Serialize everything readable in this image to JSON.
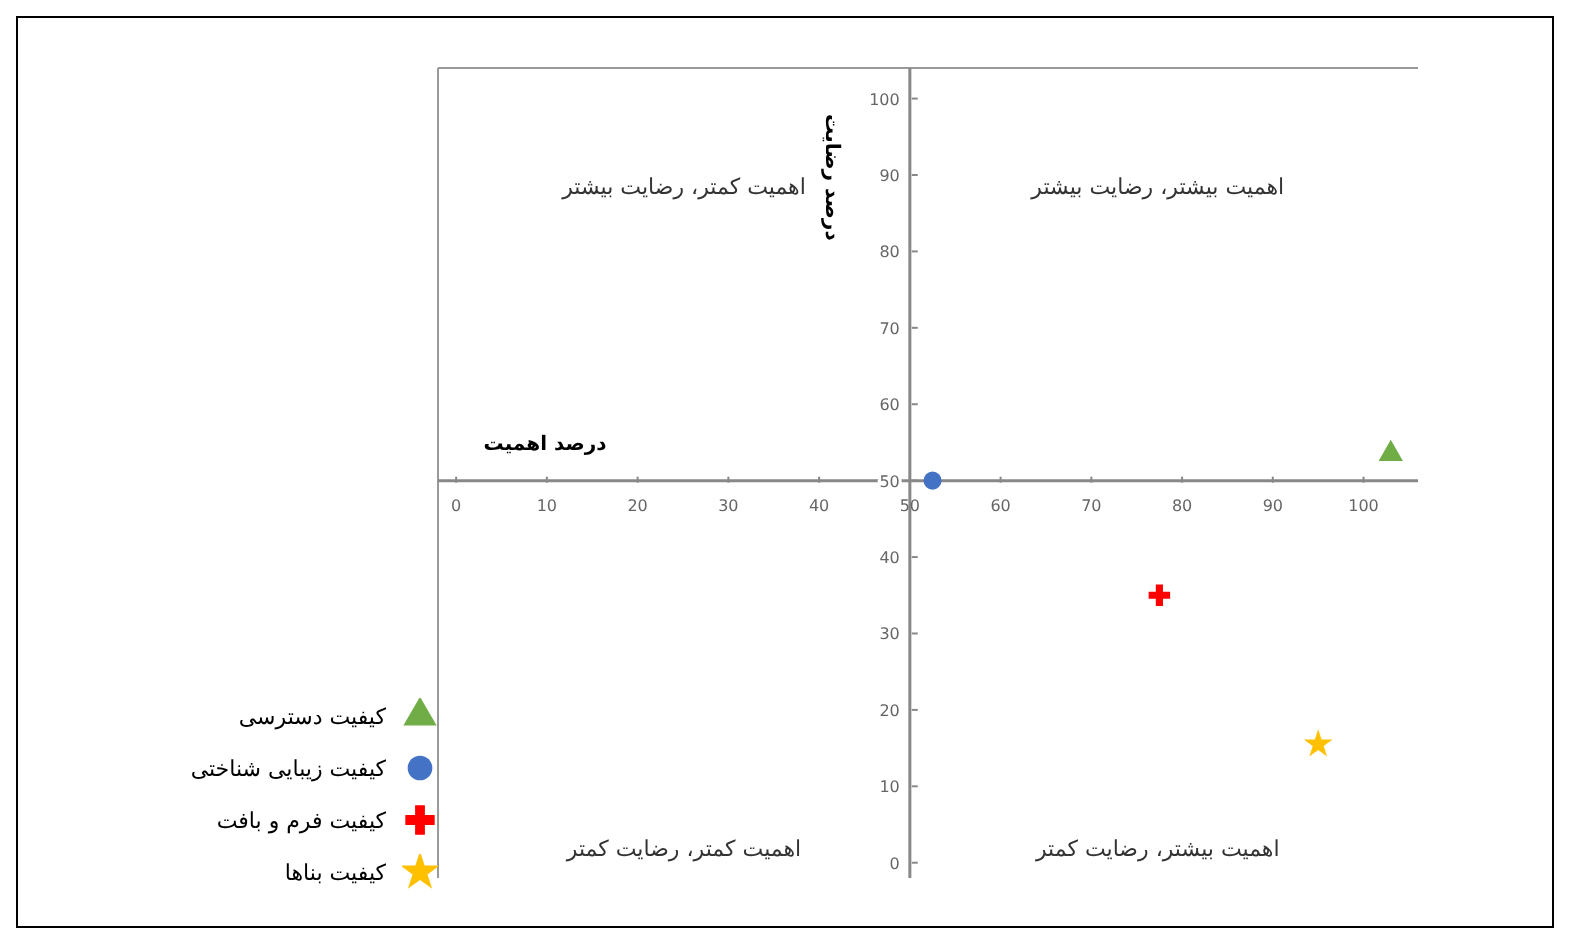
{
  "chart_data": {
    "type": "scatter",
    "xlabel": "درصد اهمیت",
    "ylabel": "درصد رضایت",
    "annotations": [
      "اهمیت کمتر، رضایت بیشتر",
      "اهمیت بیشتر، رضایت بیشتر",
      "اهمیت کمتر، رضایت کمتر",
      "اهمیت بیشتر، رضایت کمتر"
    ],
    "series": [
      {
        "name": "کیفیت دسترسی",
        "color": "#70ad47",
        "marker": "triangle",
        "x": [
          103
        ],
        "values": [
          53.5
        ]
      },
      {
        "name": "کیفیت زیبایی شناختی",
        "color": "#4472c4",
        "marker": "circle",
        "x": [
          52.5
        ],
        "values": [
          50
        ]
      },
      {
        "name": "کیفیت فرم و بافت",
        "color": "#ff0000",
        "marker": "cross",
        "x": [
          77.5
        ],
        "values": [
          35
        ]
      },
      {
        "name": "کیفیت بناها",
        "color": "#ffc000",
        "marker": "star",
        "x": [
          95
        ],
        "values": [
          15.5
        ]
      }
    ],
    "xlim": [
      -2,
      106
    ],
    "xticks": [
      0,
      10,
      20,
      30,
      40,
      50,
      60,
      70,
      80,
      90,
      100
    ],
    "ylim": [
      -2,
      104
    ],
    "yticks": [
      0,
      10,
      20,
      30,
      40,
      50,
      60,
      70,
      80,
      90,
      100
    ],
    "grid": false,
    "legend": "bottom left"
  }
}
